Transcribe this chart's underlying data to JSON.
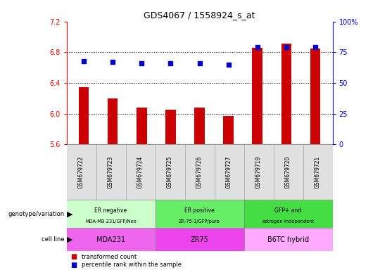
{
  "title": "GDS4067 / 1558924_s_at",
  "samples": [
    "GSM679722",
    "GSM679723",
    "GSM679724",
    "GSM679725",
    "GSM679726",
    "GSM679727",
    "GSM679719",
    "GSM679720",
    "GSM679721"
  ],
  "bar_values": [
    6.35,
    6.2,
    6.08,
    6.05,
    6.08,
    5.97,
    6.86,
    6.91,
    6.85
  ],
  "dot_values": [
    68,
    67,
    66,
    66,
    66,
    65,
    79,
    79,
    79
  ],
  "ylim_left": [
    5.6,
    7.2
  ],
  "ylim_right": [
    0,
    100
  ],
  "yticks_left": [
    5.6,
    6.0,
    6.4,
    6.8,
    7.2
  ],
  "yticks_right": [
    0,
    25,
    50,
    75,
    100
  ],
  "bar_color": "#cc0000",
  "dot_color": "#0000cc",
  "groups": [
    {
      "label1": "ER negative",
      "label2": "MDA-MB-231/GFP/Neo",
      "start": 0,
      "end": 3,
      "color": "#ccffcc"
    },
    {
      "label1": "ER positive",
      "label2": "ZR-75-1/GFP/puro",
      "start": 3,
      "end": 6,
      "color": "#66ee66"
    },
    {
      "label1": "GFP+ and",
      "label2": "estrogen-independent",
      "start": 6,
      "end": 9,
      "color": "#44dd44"
    }
  ],
  "cell_lines": [
    {
      "label": "MDA231",
      "start": 0,
      "end": 3,
      "color": "#ee66ee"
    },
    {
      "label": "ZR75",
      "start": 3,
      "end": 6,
      "color": "#ee44ee"
    },
    {
      "label": "B6TC hybrid",
      "start": 6,
      "end": 9,
      "color": "#ffaaff"
    }
  ],
  "genotype_label": "genotype/variation",
  "cell_line_label": "cell line",
  "legend_bar": "transformed count",
  "legend_dot": "percentile rank within the sample",
  "hgrid_values": [
    6.0,
    6.4,
    6.8
  ],
  "bar_width": 0.35,
  "xlim": [
    -0.6,
    8.6
  ],
  "sample_bg_color": "#e0e0e0",
  "sample_border_color": "#aaaaaa"
}
